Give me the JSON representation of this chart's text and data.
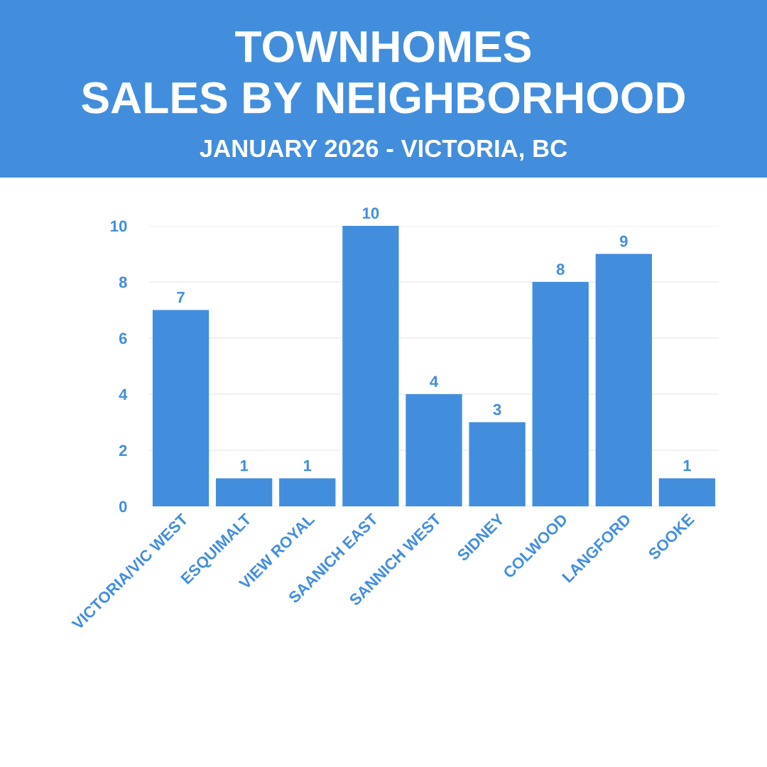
{
  "chart_data": {
    "type": "bar",
    "title": "TOWNHOMES\nSALES BY NEIGHBORHOOD",
    "subtitle": "JANUARY 2026 - VICTORIA, BC",
    "categories": [
      "VICTORIA/VIC WEST",
      "ESQUIMALT",
      "VIEW ROYAL",
      "SAANICH EAST",
      "SANNICH WEST",
      "SIDNEY",
      "COLWOOD",
      "LANGFORD",
      "SOOKE"
    ],
    "series": [
      {
        "color": "#428edd",
        "values": [
          7,
          1,
          1,
          10,
          4,
          3,
          8,
          9,
          1
        ]
      }
    ],
    "ylim": [
      0,
      10
    ],
    "yticks": [
      0,
      2,
      4,
      6,
      8,
      10
    ],
    "grid": "y",
    "data_labels": true
  }
}
